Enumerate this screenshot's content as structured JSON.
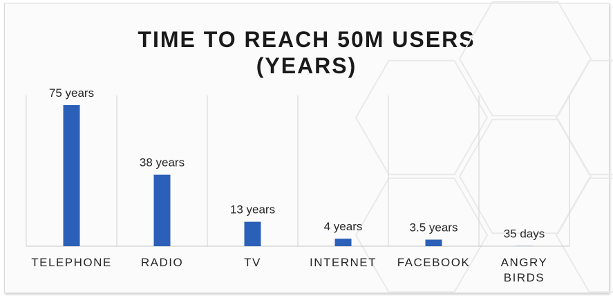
{
  "chart_data": {
    "type": "bar",
    "title_line1": "TIME TO REACH 50M USERS",
    "title_line2": "(YEARS)",
    "categories": [
      "TELEPHONE",
      "RADIO",
      "TV",
      "INTERNET",
      "FACEBOOK",
      "ANGRY BIRDS"
    ],
    "category_lines": [
      [
        "TELEPHONE"
      ],
      [
        "RADIO"
      ],
      [
        "TV"
      ],
      [
        "INTERNET"
      ],
      [
        "FACEBOOK"
      ],
      [
        "ANGRY",
        "BIRDS"
      ]
    ],
    "values": [
      75,
      38,
      13,
      4,
      3.5,
      0.096
    ],
    "data_labels": [
      "75 years",
      "38 years",
      "13 years",
      "4 years",
      "3.5 years",
      "35 days"
    ],
    "unit": "years",
    "ylim": [
      0,
      75
    ],
    "grid": true,
    "bar_color": "#2c5fb8"
  }
}
